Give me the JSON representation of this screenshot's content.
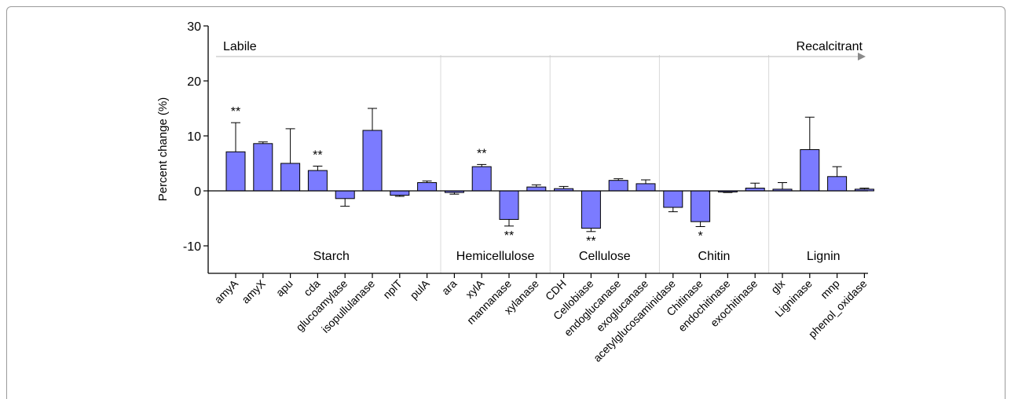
{
  "chart_data": {
    "type": "bar",
    "ylabel": "Percent change (%)",
    "ylim": [
      -15,
      30
    ],
    "yticks": [
      -10,
      0,
      10,
      20,
      30
    ],
    "bar_color": "#7b7bff",
    "categories": [
      "amyA",
      "amyX",
      "apu",
      "cda",
      "glucoamylase",
      "isopullulanase",
      "nplT",
      "pulA",
      "ara",
      "xylA",
      "mannanase",
      "xylanase",
      "CDH",
      "Cellobiase",
      "endoglucanase",
      "exoglucanase",
      "acetylglucosaminidase",
      "Chitinase",
      "endochitinase",
      "exochitinase",
      "glx",
      "Ligninase",
      "mnp",
      "phenol_oxidase"
    ],
    "values": [
      7.1,
      8.6,
      5.0,
      3.7,
      -1.4,
      11.0,
      -0.8,
      1.5,
      -0.3,
      4.4,
      -5.2,
      0.7,
      0.4,
      -6.8,
      1.9,
      1.3,
      -3.0,
      -5.6,
      -0.2,
      0.5,
      0.3,
      7.5,
      2.6,
      0.3
    ],
    "errors": [
      5.3,
      0.3,
      6.3,
      0.8,
      1.4,
      4.0,
      0.2,
      0.3,
      0.3,
      0.4,
      1.2,
      0.4,
      0.4,
      0.6,
      0.3,
      0.7,
      0.8,
      0.9,
      0.1,
      0.9,
      1.2,
      5.9,
      1.8,
      0.2
    ],
    "significance": [
      "**",
      "",
      "",
      "**",
      "",
      "",
      "",
      "",
      "",
      "**",
      "**",
      "",
      "",
      "**",
      "",
      "",
      "",
      "*",
      "",
      "",
      "",
      "",
      "",
      ""
    ],
    "groups": [
      {
        "name": "Starch",
        "start": 0,
        "end": 7
      },
      {
        "name": "Hemicellulose",
        "start": 8,
        "end": 11
      },
      {
        "name": "Cellulose",
        "start": 12,
        "end": 15
      },
      {
        "name": "Chitin",
        "start": 16,
        "end": 19
      },
      {
        "name": "Lignin",
        "start": 20,
        "end": 23
      }
    ],
    "annotations": {
      "left": "Labile",
      "right": "Recalcitrant"
    }
  }
}
